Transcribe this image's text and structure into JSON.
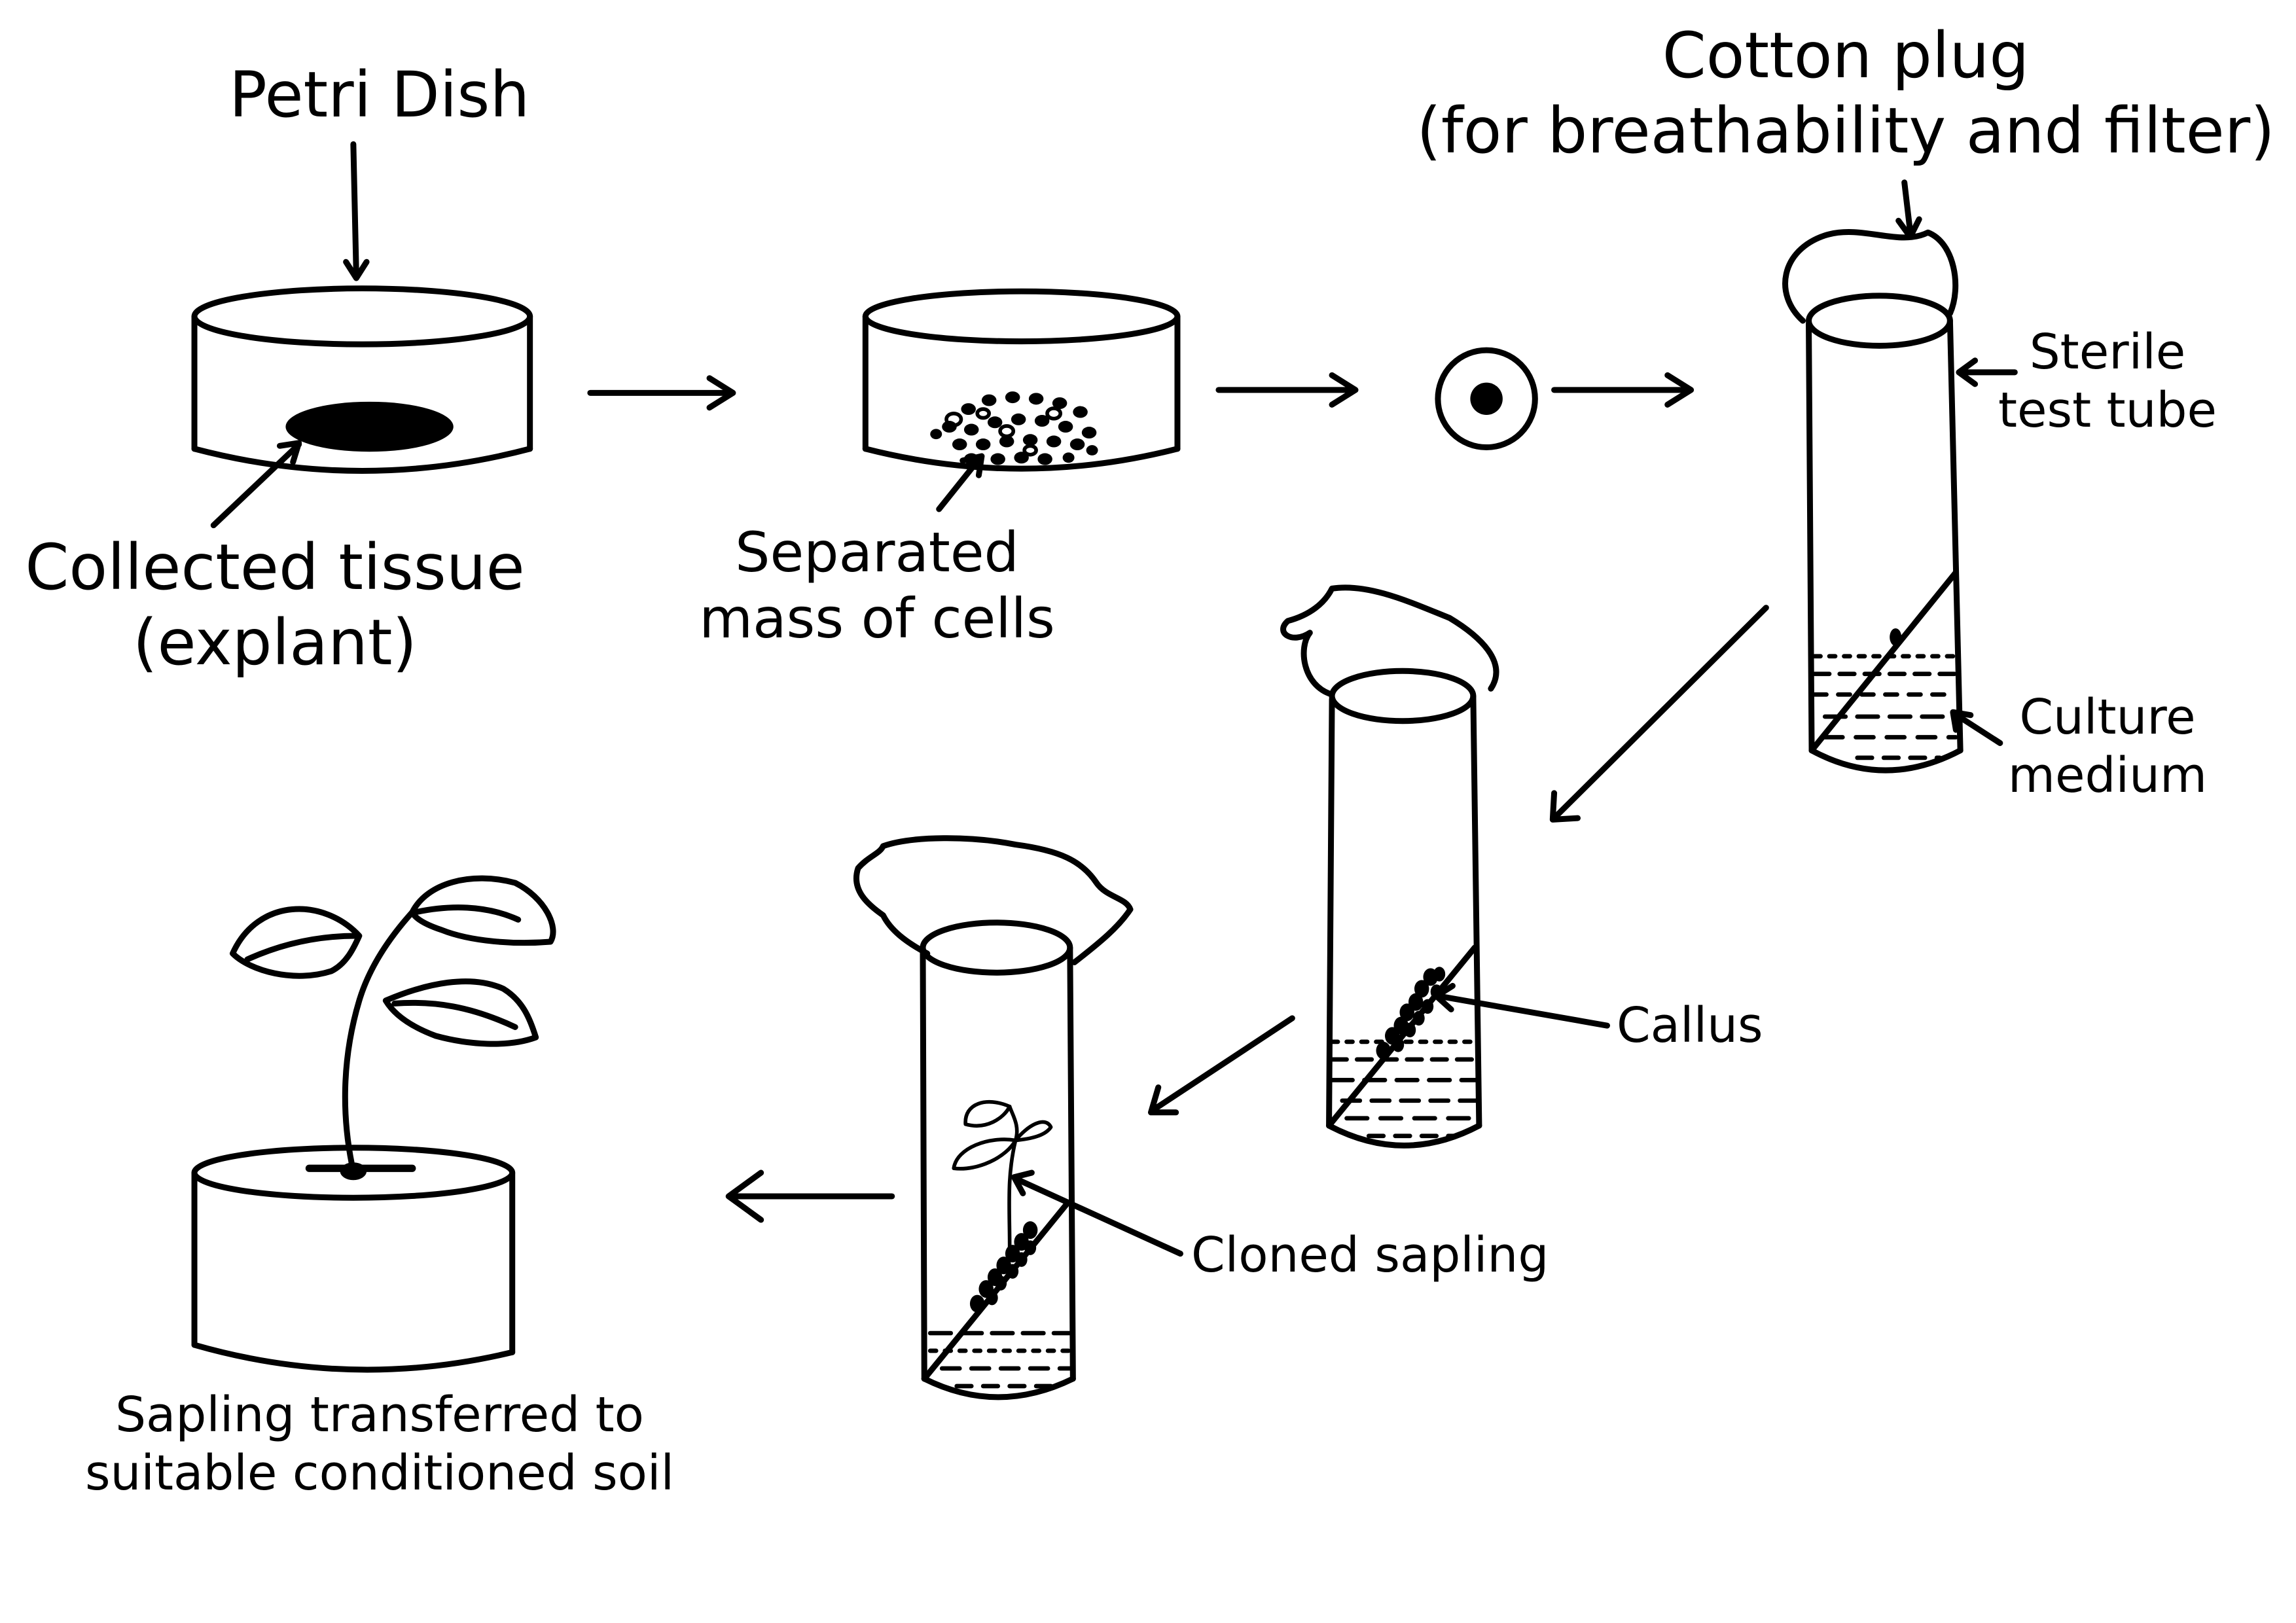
{
  "labels": {
    "petri_dish": "Petri Dish",
    "collected_tissue_line1": "Collected tissue",
    "collected_tissue_line2": "(explant)",
    "separated_line1": "Separated",
    "separated_line2": "mass of cells",
    "cotton_plug_line1": "Cotton plug",
    "cotton_plug_line2": "(for breathability and filter)",
    "sterile_line1": "Sterile",
    "sterile_line2": "test tube",
    "culture_line1": "Culture",
    "culture_line2": "medium",
    "callus": "Callus",
    "cloned_sapling": "Cloned sapling",
    "sapling_soil_line1": "Sapling transferred to",
    "sapling_soil_line2": "suitable conditioned soil"
  },
  "colors": {
    "stroke": "#000000",
    "fill": "#000000",
    "background": "#ffffff"
  }
}
